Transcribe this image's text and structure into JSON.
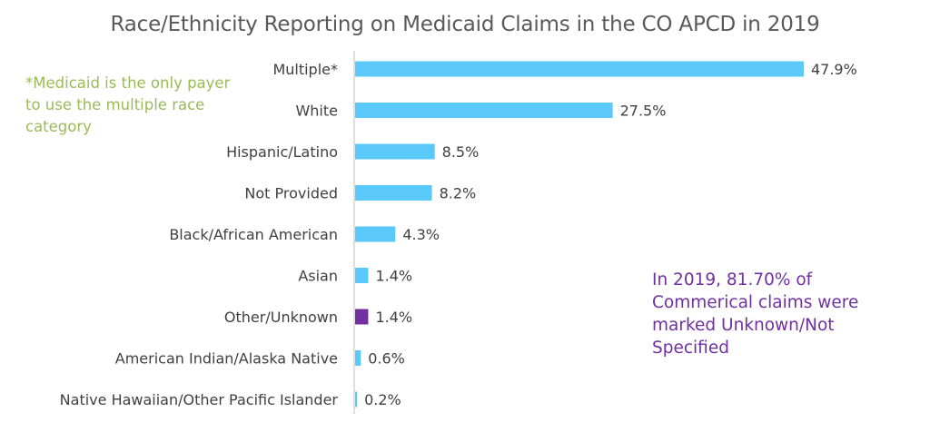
{
  "chart_data": {
    "type": "bar",
    "orientation": "horizontal",
    "title": "Race/Ethnicity Reporting on Medicaid Claims in the CO APCD in 2019",
    "categories": [
      "Multiple*",
      "White",
      "Hispanic/Latino",
      "Not Provided",
      "Black/African American",
      "Asian",
      "Other/Unknown",
      "American Indian/Alaska Native",
      "Native Hawaiian/Other Pacific Islander"
    ],
    "values": [
      47.9,
      27.5,
      8.5,
      8.2,
      4.3,
      1.4,
      1.4,
      0.6,
      0.2
    ],
    "value_labels": [
      "47.9%",
      "27.5%",
      "8.5%",
      "8.2%",
      "4.3%",
      "1.4%",
      "1.4%",
      "0.6%",
      "0.2%"
    ],
    "bar_colors": [
      "#5bc8fa",
      "#5bc8fa",
      "#5bc8fa",
      "#5bc8fa",
      "#5bc8fa",
      "#5bc8fa",
      "#7030a0",
      "#5bc8fa",
      "#5bc8fa"
    ],
    "xlim": [
      0,
      48
    ],
    "grid": false,
    "annotations": [
      "*Medicaid is the only payer to use the multiple race category",
      "In 2019, 81.70% of Commerical claims were marked Unknown/Not Specified"
    ]
  },
  "notes": {
    "left": "*Medicaid is the only payer to use the multiple race category",
    "right": "In 2019, 81.70% of Commerical claims were marked Unknown/Not Specified"
  },
  "colors": {
    "bar": "#5bc8fa",
    "highlight_bar": "#7030a0",
    "left_note": "#9bbb59",
    "right_note": "#7030a0",
    "axis": "#bfbfbf"
  }
}
